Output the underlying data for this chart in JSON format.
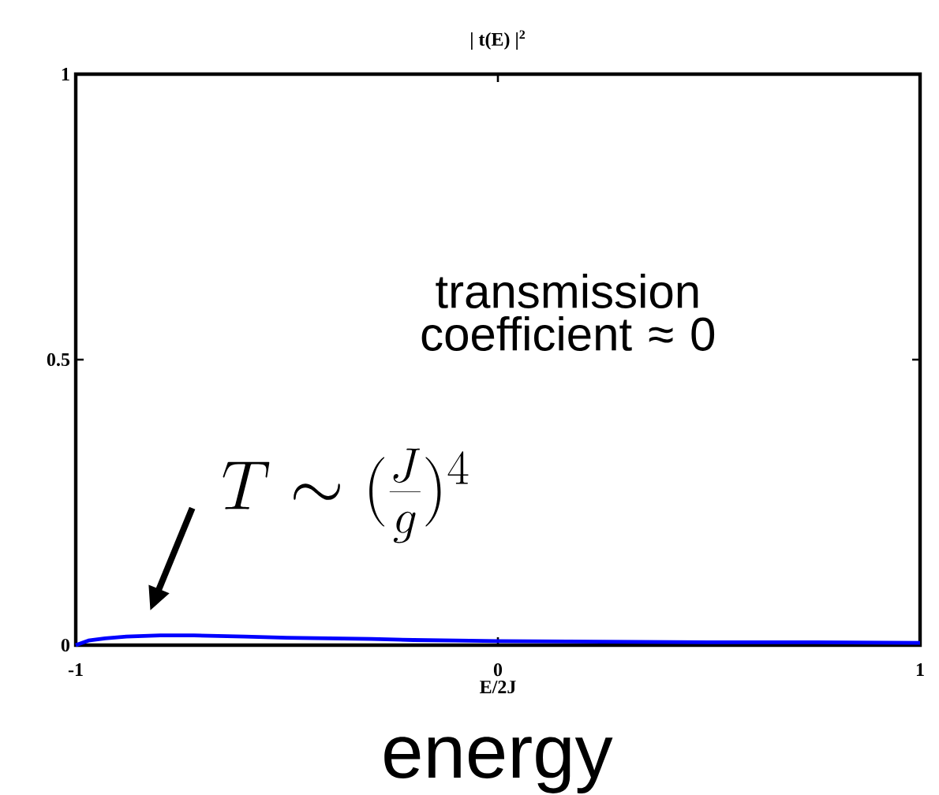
{
  "chart_data": {
    "type": "line",
    "title": "| t(E) |$^{2}$",
    "xlabel": "E/2J",
    "x": [
      -1,
      -0.97,
      -0.93,
      -0.88,
      -0.8,
      -0.72,
      -0.6,
      -0.5,
      -0.4,
      -0.3,
      -0.2,
      -0.1,
      0,
      0.25,
      0.5,
      0.75,
      1
    ],
    "series": [
      {
        "color": "#0000ff",
        "values": [
          0,
          0.008,
          0.012,
          0.015,
          0.017,
          0.017,
          0.015,
          0.013,
          0.012,
          0.011,
          0.009,
          0.008,
          0.007,
          0.006,
          0.005,
          0.005,
          0.004
        ]
      }
    ],
    "xlim": [
      -1,
      1
    ],
    "ylim": [
      0,
      1
    ],
    "xticks": [
      -1,
      0,
      1
    ],
    "yticks": [
      0,
      0.5,
      1
    ],
    "marker": "none",
    "line_style": "solid",
    "annotations": [
      "transmission coefficient ≈ 0",
      "T \\sim (\\frac{J}{g})^4",
      "energy"
    ]
  }
}
